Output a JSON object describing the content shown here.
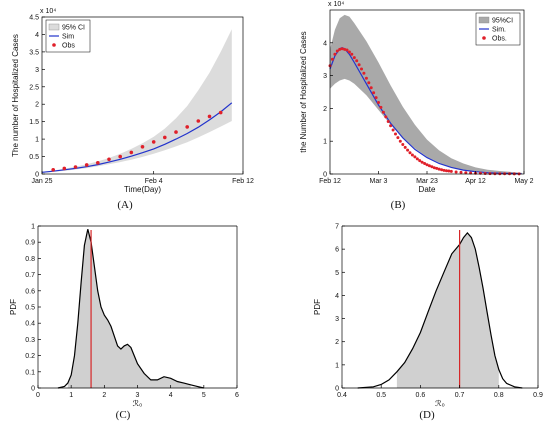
{
  "chart_data": [
    {
      "id": "A",
      "type": "line",
      "panel_label": "(A)",
      "xlabel": "Time(Day)",
      "ylabel": "The number of Hospitalized Cases",
      "y_exponent": "x 10⁴",
      "xlim": [
        0,
        18
      ],
      "ylim": [
        0,
        4.5
      ],
      "x_ticks": [
        {
          "v": 0,
          "label": "Jan 25"
        },
        {
          "v": 10,
          "label": "Feb 4"
        },
        {
          "v": 18,
          "label": "Feb 12"
        }
      ],
      "y_ticks": [
        0,
        0.5,
        1,
        1.5,
        2,
        2.5,
        3,
        3.5,
        4,
        4.5
      ],
      "legend": [
        "95% CI",
        "Sim",
        "Obs"
      ],
      "legend_position": "top-left",
      "ci_x": [
        0,
        1,
        2,
        3,
        4,
        5,
        6,
        7,
        8,
        9,
        10,
        11,
        12,
        13,
        14,
        15,
        16,
        17
      ],
      "ci_lower": [
        0.03,
        0.06,
        0.09,
        0.13,
        0.17,
        0.22,
        0.28,
        0.34,
        0.41,
        0.49,
        0.58,
        0.68,
        0.79,
        0.91,
        1.05,
        1.2,
        1.36,
        1.52
      ],
      "ci_upper": [
        0.06,
        0.1,
        0.15,
        0.21,
        0.28,
        0.36,
        0.46,
        0.58,
        0.72,
        0.88,
        1.07,
        1.3,
        1.6,
        1.95,
        2.4,
        2.9,
        3.5,
        4.15
      ],
      "series": [
        {
          "name": "Sim",
          "x": [
            0,
            1,
            2,
            3,
            4,
            5,
            6,
            7,
            8,
            9,
            10,
            11,
            12,
            13,
            14,
            15,
            16,
            17
          ],
          "values": [
            0.05,
            0.08,
            0.12,
            0.16,
            0.21,
            0.27,
            0.34,
            0.42,
            0.51,
            0.61,
            0.72,
            0.85,
            1.0,
            1.16,
            1.34,
            1.55,
            1.78,
            2.04
          ]
        },
        {
          "name": "Obs",
          "x": [
            1,
            2,
            3,
            4,
            5,
            6,
            7,
            8,
            9,
            10,
            11,
            12,
            13,
            14,
            15,
            16
          ],
          "values": [
            0.12,
            0.16,
            0.2,
            0.26,
            0.32,
            0.42,
            0.5,
            0.62,
            0.78,
            0.92,
            1.05,
            1.2,
            1.35,
            1.52,
            1.65,
            1.76
          ]
        }
      ]
    },
    {
      "id": "B",
      "type": "line",
      "panel_label": "(B)",
      "xlabel": "Date",
      "ylabel": "the Number of Hospitalized Cases",
      "y_exponent": "x 10⁴",
      "xlim": [
        0,
        80
      ],
      "ylim": [
        0,
        5
      ],
      "x_ticks": [
        {
          "v": 0,
          "label": "Feb 12"
        },
        {
          "v": 20,
          "label": "Mar 3"
        },
        {
          "v": 40,
          "label": "Mar 23"
        },
        {
          "v": 60,
          "label": "Apr 12"
        },
        {
          "v": 80,
          "label": "May 2"
        }
      ],
      "y_ticks": [
        0,
        1,
        2,
        3,
        4
      ],
      "legend": [
        "95%CI",
        "Sim.",
        "Obs."
      ],
      "legend_position": "top-right",
      "ci_x": [
        0,
        2,
        4,
        6,
        8,
        10,
        15,
        20,
        25,
        30,
        35,
        40,
        45,
        50,
        55,
        60,
        65,
        70,
        75,
        79
      ],
      "ci_lower": [
        2.6,
        2.75,
        2.85,
        2.9,
        2.85,
        2.75,
        2.4,
        1.95,
        1.5,
        1.1,
        0.78,
        0.52,
        0.34,
        0.2,
        0.12,
        0.06,
        0.03,
        0.015,
        0.01,
        0.005
      ],
      "ci_upper": [
        3.8,
        4.4,
        4.75,
        4.85,
        4.8,
        4.6,
        4.05,
        3.4,
        2.7,
        2.05,
        1.5,
        1.05,
        0.72,
        0.48,
        0.32,
        0.2,
        0.13,
        0.09,
        0.06,
        0.04
      ],
      "series": [
        {
          "name": "Sim.",
          "x": [
            0,
            2,
            4,
            5,
            6,
            8,
            10,
            15,
            20,
            25,
            30,
            35,
            40,
            45,
            50,
            55,
            60,
            65,
            70,
            75,
            79
          ],
          "values": [
            3.2,
            3.6,
            3.82,
            3.85,
            3.82,
            3.65,
            3.4,
            2.75,
            2.1,
            1.55,
            1.1,
            0.75,
            0.5,
            0.32,
            0.2,
            0.12,
            0.07,
            0.04,
            0.025,
            0.015,
            0.01
          ]
        },
        {
          "name": "Obs.",
          "x": [
            0,
            1,
            2,
            3,
            4,
            5,
            6,
            7,
            8,
            9,
            10,
            11,
            12,
            13,
            14,
            15,
            16,
            17,
            18,
            19,
            20,
            21,
            22,
            23,
            24,
            25,
            26,
            27,
            28,
            29,
            30,
            31,
            32,
            33,
            34,
            35,
            36,
            37,
            38,
            39,
            40,
            41,
            42,
            43,
            44,
            45,
            46,
            47,
            48,
            49,
            50,
            52,
            54,
            56,
            58,
            60,
            62,
            64,
            66,
            68,
            70,
            72,
            74,
            76,
            78
          ],
          "values": [
            3.3,
            3.5,
            3.65,
            3.75,
            3.8,
            3.82,
            3.8,
            3.78,
            3.72,
            3.65,
            3.55,
            3.45,
            3.33,
            3.2,
            3.07,
            2.92,
            2.78,
            2.63,
            2.48,
            2.33,
            2.18,
            2.03,
            1.88,
            1.74,
            1.6,
            1.47,
            1.34,
            1.22,
            1.11,
            1.0,
            0.9,
            0.81,
            0.73,
            0.65,
            0.58,
            0.52,
            0.46,
            0.41,
            0.36,
            0.32,
            0.28,
            0.25,
            0.22,
            0.19,
            0.17,
            0.15,
            0.13,
            0.11,
            0.1,
            0.09,
            0.08,
            0.06,
            0.05,
            0.04,
            0.03,
            0.025,
            0.02,
            0.016,
            0.013,
            0.01,
            0.008,
            0.006,
            0.005,
            0.004,
            0.003
          ]
        }
      ]
    },
    {
      "id": "C",
      "type": "area",
      "panel_label": "(C)",
      "xlabel": "ℛ₀",
      "ylabel": "PDF",
      "xlim": [
        0,
        6
      ],
      "ylim": [
        0,
        1
      ],
      "x_ticks": [
        0,
        1,
        2,
        3,
        4,
        5,
        6
      ],
      "y_ticks": [
        0,
        0.1,
        0.2,
        0.3,
        0.4,
        0.5,
        0.6,
        0.7,
        0.8,
        0.9,
        1
      ],
      "vline": 1.6,
      "fill_range": [
        0.9,
        4.6
      ],
      "series": [
        {
          "name": "",
          "x": [
            0.6,
            0.8,
            0.9,
            1.0,
            1.1,
            1.2,
            1.3,
            1.4,
            1.5,
            1.6,
            1.7,
            1.8,
            1.9,
            2.0,
            2.1,
            2.2,
            2.3,
            2.4,
            2.5,
            2.6,
            2.7,
            2.8,
            2.9,
            3.0,
            3.2,
            3.4,
            3.6,
            3.8,
            4.0,
            4.2,
            4.4,
            4.6,
            4.8,
            5.0
          ],
          "values": [
            0.0,
            0.01,
            0.03,
            0.08,
            0.2,
            0.4,
            0.65,
            0.88,
            0.98,
            0.9,
            0.75,
            0.6,
            0.5,
            0.45,
            0.42,
            0.38,
            0.32,
            0.26,
            0.24,
            0.26,
            0.27,
            0.25,
            0.2,
            0.15,
            0.09,
            0.05,
            0.05,
            0.07,
            0.06,
            0.04,
            0.03,
            0.02,
            0.01,
            0.0
          ]
        }
      ]
    },
    {
      "id": "D",
      "type": "area",
      "panel_label": "(D)",
      "xlabel": "ℛ₀",
      "ylabel": "PDF",
      "xlim": [
        0.4,
        0.9
      ],
      "ylim": [
        0,
        7
      ],
      "x_ticks": [
        0.4,
        0.5,
        0.6,
        0.7,
        0.8,
        0.9
      ],
      "y_ticks": [
        0,
        1,
        2,
        3,
        4,
        5,
        6,
        7
      ],
      "vline": 0.7,
      "fill_range": [
        0.53,
        0.805
      ],
      "series": [
        {
          "name": "",
          "x": [
            0.44,
            0.48,
            0.5,
            0.52,
            0.54,
            0.56,
            0.58,
            0.6,
            0.62,
            0.64,
            0.66,
            0.68,
            0.7,
            0.71,
            0.72,
            0.73,
            0.74,
            0.75,
            0.76,
            0.77,
            0.78,
            0.79,
            0.8,
            0.81,
            0.82,
            0.84,
            0.86
          ],
          "values": [
            0.0,
            0.05,
            0.15,
            0.35,
            0.7,
            1.1,
            1.7,
            2.4,
            3.3,
            4.2,
            5.0,
            5.8,
            6.2,
            6.5,
            6.7,
            6.5,
            6.0,
            5.2,
            4.3,
            3.3,
            2.3,
            1.4,
            0.8,
            0.4,
            0.2,
            0.05,
            0.0
          ]
        }
      ]
    }
  ]
}
